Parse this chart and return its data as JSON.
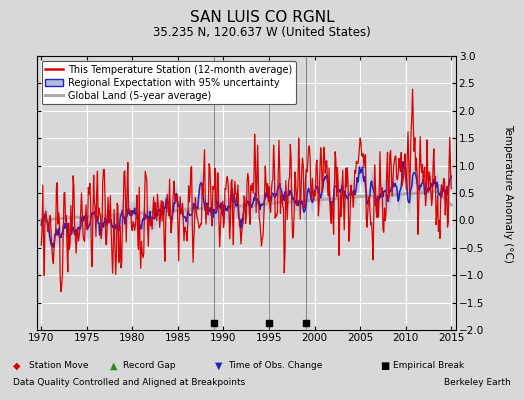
{
  "title": "SAN LUIS CO RGNL",
  "subtitle": "35.235 N, 120.637 W (United States)",
  "ylabel": "Temperature Anomaly (°C)",
  "xlabel_note": "Data Quality Controlled and Aligned at Breakpoints",
  "credit": "Berkeley Earth",
  "xlim": [
    1969.5,
    2015.5
  ],
  "ylim": [
    -2,
    3
  ],
  "yticks": [
    -2,
    -1.5,
    -1,
    -0.5,
    0,
    0.5,
    1,
    1.5,
    2,
    2.5,
    3
  ],
  "xticks": [
    1970,
    1975,
    1980,
    1985,
    1990,
    1995,
    2000,
    2005,
    2010,
    2015
  ],
  "bg_color": "#d8d8d8",
  "plot_bg_color": "#d8d8d8",
  "grid_color": "#ffffff",
  "empirical_breaks": [
    1989,
    1995,
    1999
  ],
  "legend_entries": [
    "This Temperature Station (12-month average)",
    "Regional Expectation with 95% uncertainty",
    "Global Land (5-year average)"
  ]
}
